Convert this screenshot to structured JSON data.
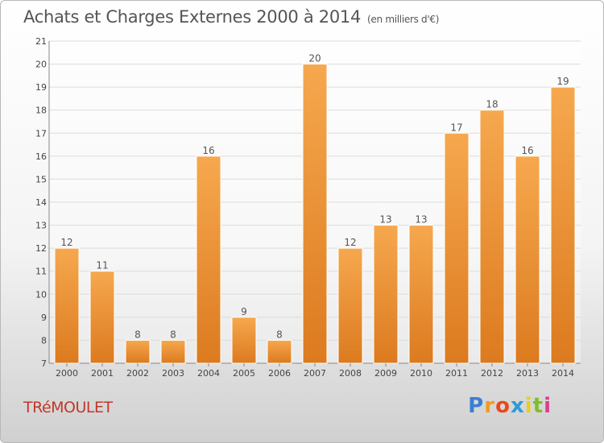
{
  "title": "Achats et Charges Externes 2000 à 2014",
  "unit": "(en milliers d'€)",
  "commune": "TRéMOULET",
  "brand": {
    "letters": [
      "P",
      "r",
      "o",
      "x",
      "i",
      "t",
      "i"
    ],
    "colors": [
      "#3a7fd4",
      "#f29b1f",
      "#e8481c",
      "#2e9ad8",
      "#e8d019",
      "#7bbf2a",
      "#e23b8c"
    ]
  },
  "colors": {
    "bar_light": "#f6a84e",
    "bar_dark": "#dc7a1f",
    "commune": "#c0392b"
  },
  "chart_data": {
    "type": "bar",
    "title": "Achats et Charges Externes 2000 à 2014",
    "xlabel": "",
    "ylabel": "",
    "ylim": [
      7,
      21
    ],
    "yticks": [
      7,
      8,
      9,
      10,
      11,
      12,
      13,
      14,
      15,
      16,
      17,
      18,
      19,
      20,
      21
    ],
    "grid": true,
    "categories": [
      "2000",
      "2001",
      "2002",
      "2003",
      "2004",
      "2005",
      "2006",
      "2007",
      "2008",
      "2009",
      "2010",
      "2011",
      "2012",
      "2013",
      "2014"
    ],
    "values": [
      12,
      11,
      8,
      8,
      16,
      9,
      8,
      20,
      12,
      13,
      13,
      17,
      18,
      16,
      19
    ]
  }
}
